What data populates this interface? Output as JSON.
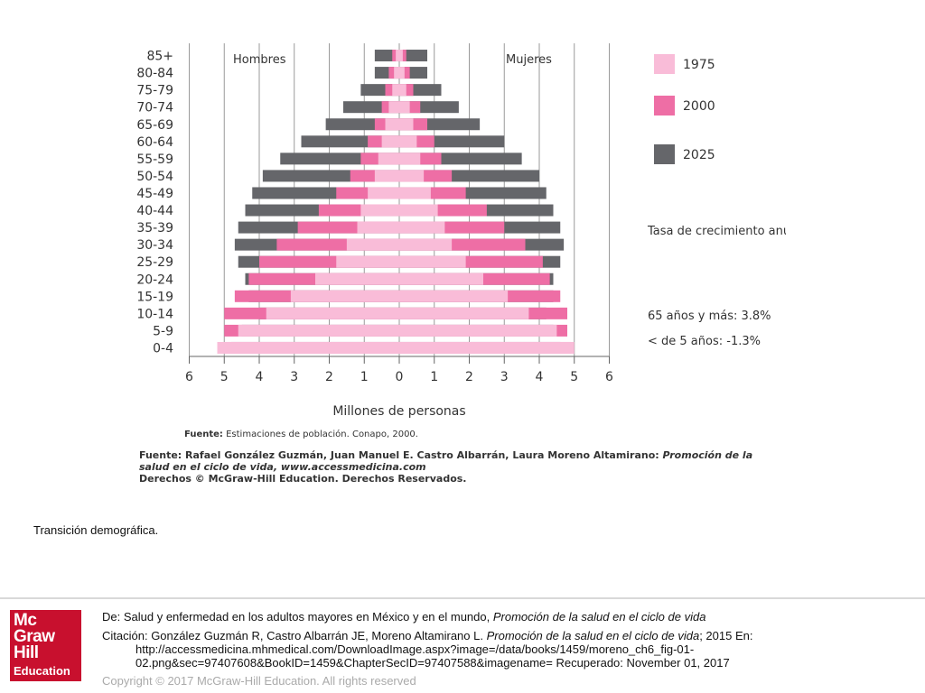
{
  "chart_data": {
    "type": "bar",
    "subtype": "population-pyramid",
    "categories": [
      "0-4",
      "5-9",
      "10-14",
      "15-19",
      "20-24",
      "25-29",
      "30-34",
      "35-39",
      "40-44",
      "45-49",
      "50-54",
      "55-59",
      "60-64",
      "65-69",
      "70-74",
      "75-79",
      "80-84",
      "85+"
    ],
    "left_label": "Hombres",
    "right_label": "Mujeres",
    "xlabel": "Millones de personas",
    "xlim": [
      -6,
      6
    ],
    "xticks": [
      "6",
      "5",
      "4",
      "3",
      "2",
      "1",
      "0",
      "1",
      "2",
      "3",
      "4",
      "5",
      "6"
    ],
    "series": [
      {
        "name": "2025",
        "color": "#65666a",
        "men": [
          4.8,
          4.5,
          4.0,
          4.3,
          4.4,
          4.6,
          4.7,
          4.6,
          4.4,
          4.2,
          3.9,
          3.4,
          2.8,
          2.1,
          1.6,
          1.1,
          0.7,
          0.7
        ],
        "women": [
          4.6,
          4.4,
          4.2,
          4.4,
          4.4,
          4.6,
          4.7,
          4.6,
          4.4,
          4.2,
          4.0,
          3.5,
          3.0,
          2.3,
          1.7,
          1.2,
          0.8,
          0.8
        ]
      },
      {
        "name": "2000",
        "color": "#ee6ea5",
        "men": [
          5.0,
          5.0,
          5.0,
          4.7,
          4.3,
          4.0,
          3.5,
          2.9,
          2.3,
          1.8,
          1.4,
          1.1,
          0.9,
          0.7,
          0.5,
          0.4,
          0.3,
          0.2
        ],
        "women": [
          4.9,
          4.8,
          4.8,
          4.6,
          4.3,
          4.1,
          3.6,
          3.0,
          2.5,
          1.9,
          1.5,
          1.2,
          1.0,
          0.8,
          0.6,
          0.4,
          0.3,
          0.2
        ]
      },
      {
        "name": "1975",
        "color": "#f9bcd8",
        "men": [
          5.2,
          4.6,
          3.8,
          3.1,
          2.4,
          1.8,
          1.5,
          1.2,
          1.1,
          0.9,
          0.7,
          0.6,
          0.5,
          0.4,
          0.3,
          0.2,
          0.15,
          0.1
        ],
        "women": [
          5.0,
          4.5,
          3.7,
          3.1,
          2.4,
          1.9,
          1.5,
          1.3,
          1.1,
          0.9,
          0.7,
          0.6,
          0.5,
          0.4,
          0.3,
          0.2,
          0.15,
          0.1
        ]
      }
    ],
    "legend": [
      "1975",
      "2000",
      "2025"
    ],
    "legend_position": "right",
    "annotation_title": "Tasa de crecimiento anual",
    "annotations": [
      "65 años y más: 3.8%",
      "< de 5 años: -1.3%"
    ],
    "grid": true
  },
  "source": {
    "fuente_label": "Fuente:",
    "fuente_text": " Estimaciones de población. Conapo, 2000.",
    "credit_plain": "Fuente: Rafael González Guzmán, Juan Manuel E. Castro Albarrán, Laura Moreno Altamirano: ",
    "credit_italic": "Promoción de la salud en el ciclo de vida",
    "credit_url": ", www.accessmedicina.com",
    "rights": "Derechos © McGraw-Hill Education. Derechos Reservados."
  },
  "caption": "Transición demográfica.",
  "footer": {
    "from_plain": "De: Salud y enfermedad en los adultos mayores en México y en el mundo, ",
    "from_italic": "Promoción de la salud en el ciclo de vida",
    "cite_plain": "Citación: González Guzmán R, Castro Albarrán JE, Moreno Altamirano L. ",
    "cite_italic": "Promoción de la salud en el ciclo de vida",
    "cite_tail": "; 2015 En:",
    "cite_url": "http://accessmedicina.mhmedical.com/DownloadImage.aspx?image=/data/books/1459/moreno_ch6_fig-01-02.png&sec=97407608&BookID=1459&ChapterSecID=97407588&imagename= Recuperado: November 01, 2017",
    "copyright": "Copyright © 2017 McGraw-Hill Education. All rights reserved"
  },
  "logo": {
    "line1": "Mc",
    "line2": "Graw",
    "line3": "Hill",
    "line4": "Education",
    "color": "#c8102e"
  }
}
